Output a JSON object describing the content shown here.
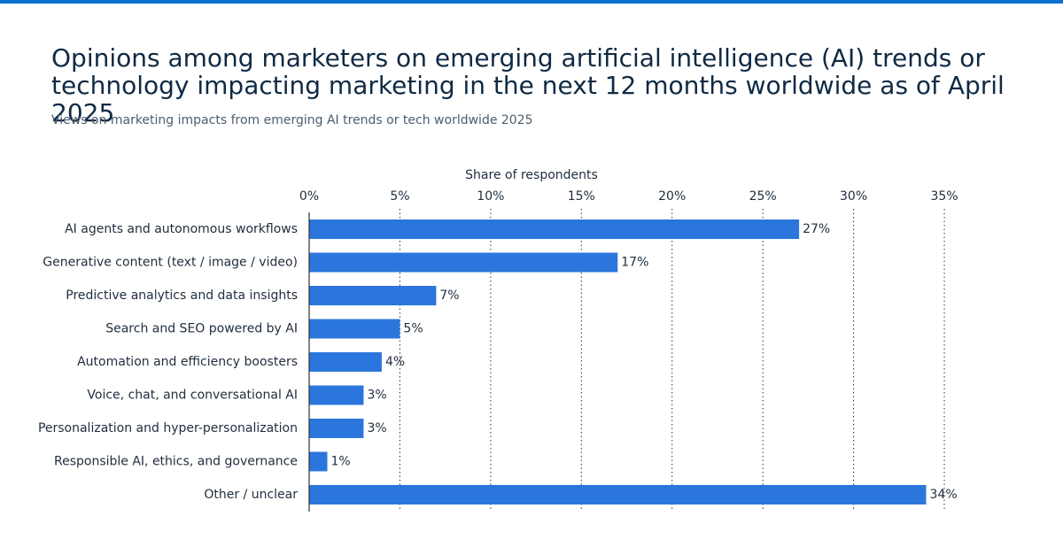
{
  "chart_data": {
    "type": "bar",
    "orientation": "horizontal",
    "title": "Opinions among marketers on emerging artificial intelligence (AI) trends or technology impacting marketing in the next 12 months worldwide as of April 2025",
    "subtitle": "Views on marketing impacts from emerging AI trends or tech worldwide 2025",
    "x_label": "Share of respondents",
    "categories": [
      "AI agents and autonomous workflows",
      "Generative content (text / image / video)",
      "Predictive analytics and data insights",
      "Search and SEO powered by AI",
      "Automation and efficiency boosters",
      "Voice, chat, and conversational AI",
      "Personalization and hyper-personalization",
      "Responsible AI, ethics, and governance",
      "Other / unclear"
    ],
    "values": [
      27,
      17,
      7,
      5,
      4,
      3,
      3,
      1,
      34
    ],
    "value_labels": [
      "27%",
      "17%",
      "7%",
      "5%",
      "4%",
      "3%",
      "3%",
      "1%",
      "34%"
    ],
    "color": "#2b76dc",
    "xlim": [
      0,
      35
    ],
    "xticks": [
      {
        "value": 0,
        "label": "0%"
      },
      {
        "value": 5,
        "label": "5%"
      },
      {
        "value": 10,
        "label": "10%"
      },
      {
        "value": 15,
        "label": "15%"
      },
      {
        "value": 20,
        "label": "20%"
      },
      {
        "value": 25,
        "label": "25%"
      },
      {
        "value": 30,
        "label": "30%"
      },
      {
        "value": 35,
        "label": "35%"
      }
    ],
    "grid": true
  }
}
